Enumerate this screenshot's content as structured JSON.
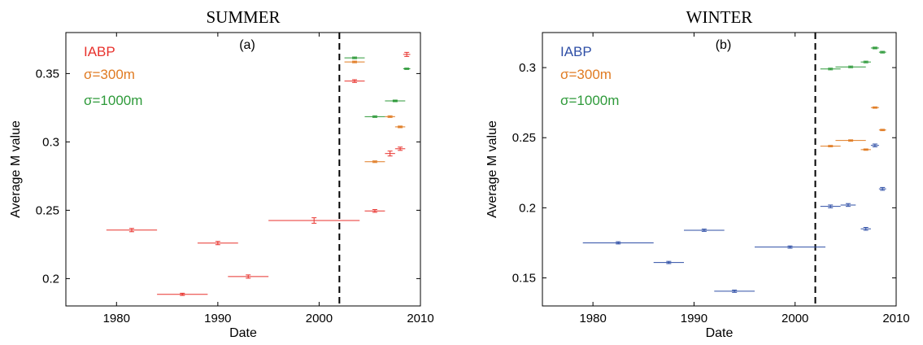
{
  "chart_data": [
    {
      "type": "scatter",
      "title": "SUMMER",
      "panel_label": "(a)",
      "xlabel": "Date",
      "ylabel": "Average M value",
      "xlim": [
        1975,
        2010
      ],
      "ylim": [
        0.18,
        0.38
      ],
      "xticks": [
        1980,
        1990,
        2000,
        2010
      ],
      "yticks": [
        0.2,
        0.25,
        0.3,
        0.35
      ],
      "ytick_labels": [
        "0.2",
        "0.25",
        "0.3",
        "0.35"
      ],
      "vline_x": 2002,
      "grid": false,
      "legend": [
        {
          "label": "IABP",
          "color": "#e8322d"
        },
        {
          "label": "σ=300m",
          "color": "#e07b22"
        },
        {
          "label": "σ=1000m",
          "color": "#2e9a3a"
        }
      ],
      "series": [
        {
          "color": "#e8322d",
          "points": [
            {
              "x0": 1979,
              "x1": 1984,
              "y": 0.2355,
              "err": 0.0012
            },
            {
              "x0": 1984,
              "x1": 1989,
              "y": 0.1885,
              "err": 0.0008
            },
            {
              "x0": 1988,
              "x1": 1992,
              "y": 0.226,
              "err": 0.0012
            },
            {
              "x0": 1991,
              "x1": 1995,
              "y": 0.2015,
              "err": 0.0012
            },
            {
              "x0": 1995,
              "x1": 2004,
              "y": 0.2425,
              "err": 0.002
            },
            {
              "x0": 2002.5,
              "x1": 2004.5,
              "y": 0.3445,
              "err": 0.001
            },
            {
              "x0": 2004.5,
              "x1": 2006.5,
              "y": 0.2495,
              "err": 0.001
            },
            {
              "x0": 2006.5,
              "x1": 2007.5,
              "y": 0.2915,
              "err": 0.0018
            },
            {
              "x0": 2007.5,
              "x1": 2008.5,
              "y": 0.295,
              "err": 0.0012
            },
            {
              "x0": 2008.3,
              "x1": 2009,
              "y": 0.364,
              "err": 0.0015
            }
          ]
        },
        {
          "color": "#e07b22",
          "points": [
            {
              "x0": 2002.5,
              "x1": 2004.5,
              "y": 0.3585,
              "err": 0.0006
            },
            {
              "x0": 2004.5,
              "x1": 2006.5,
              "y": 0.2855,
              "err": 0.0006
            },
            {
              "x0": 2006.5,
              "x1": 2007.5,
              "y": 0.3185,
              "err": 0.0006
            },
            {
              "x0": 2007.5,
              "x1": 2008.5,
              "y": 0.311,
              "err": 0.0006
            }
          ]
        },
        {
          "color": "#2e9a3a",
          "points": [
            {
              "x0": 2002.5,
              "x1": 2004.5,
              "y": 0.3615,
              "err": 0.0006
            },
            {
              "x0": 2004.5,
              "x1": 2006.5,
              "y": 0.3185,
              "err": 0.0006
            },
            {
              "x0": 2006.5,
              "x1": 2008.5,
              "y": 0.33,
              "err": 0.0006
            },
            {
              "x0": 2008.3,
              "x1": 2009,
              "y": 0.3535,
              "err": 0.0005
            }
          ]
        }
      ]
    },
    {
      "type": "scatter",
      "title": "WINTER",
      "panel_label": "(b)",
      "xlabel": "Date",
      "ylabel": "Average M value",
      "xlim": [
        1975,
        2010
      ],
      "ylim": [
        0.13,
        0.325
      ],
      "xticks": [
        1980,
        1990,
        2000,
        2010
      ],
      "yticks": [
        0.15,
        0.2,
        0.25,
        0.3
      ],
      "ytick_labels": [
        "0.15",
        "0.2",
        "0.25",
        "0.3"
      ],
      "vline_x": 2002,
      "grid": false,
      "legend": [
        {
          "label": "IABP",
          "color": "#2f4fa6"
        },
        {
          "label": "σ=300m",
          "color": "#e07b22"
        },
        {
          "label": "σ=1000m",
          "color": "#2e9a3a"
        }
      ],
      "series": [
        {
          "color": "#2f4fa6",
          "points": [
            {
              "x0": 1979,
              "x1": 1986,
              "y": 0.175,
              "err": 0.0008
            },
            {
              "x0": 1986,
              "x1": 1989,
              "y": 0.161,
              "err": 0.0008
            },
            {
              "x0": 1989,
              "x1": 1993,
              "y": 0.184,
              "err": 0.0008
            },
            {
              "x0": 1992,
              "x1": 1996,
              "y": 0.1405,
              "err": 0.0008
            },
            {
              "x0": 1996,
              "x1": 2003,
              "y": 0.172,
              "err": 0.0008
            },
            {
              "x0": 2002.5,
              "x1": 2004.5,
              "y": 0.201,
              "err": 0.001
            },
            {
              "x0": 2004.5,
              "x1": 2006,
              "y": 0.202,
              "err": 0.001
            },
            {
              "x0": 2006.5,
              "x1": 2007.5,
              "y": 0.185,
              "err": 0.001
            },
            {
              "x0": 2007.5,
              "x1": 2008.3,
              "y": 0.2445,
              "err": 0.001
            },
            {
              "x0": 2008.3,
              "x1": 2009,
              "y": 0.2135,
              "err": 0.001
            }
          ]
        },
        {
          "color": "#e07b22",
          "points": [
            {
              "x0": 2002.5,
              "x1": 2004.5,
              "y": 0.244,
              "err": 0.0005
            },
            {
              "x0": 2004,
              "x1": 2007,
              "y": 0.248,
              "err": 0.0005
            },
            {
              "x0": 2006.5,
              "x1": 2007.5,
              "y": 0.2415,
              "err": 0.0005
            },
            {
              "x0": 2007.5,
              "x1": 2008.3,
              "y": 0.2715,
              "err": 0.0005
            },
            {
              "x0": 2008.3,
              "x1": 2009,
              "y": 0.2555,
              "err": 0.0005
            }
          ]
        },
        {
          "color": "#2e9a3a",
          "points": [
            {
              "x0": 2002.5,
              "x1": 2004.5,
              "y": 0.299,
              "err": 0.0006
            },
            {
              "x0": 2004,
              "x1": 2007,
              "y": 0.3005,
              "err": 0.0006
            },
            {
              "x0": 2006.5,
              "x1": 2007.5,
              "y": 0.304,
              "err": 0.0006
            },
            {
              "x0": 2007.5,
              "x1": 2008.3,
              "y": 0.314,
              "err": 0.0006
            },
            {
              "x0": 2008.3,
              "x1": 2009,
              "y": 0.311,
              "err": 0.0006
            }
          ]
        }
      ]
    }
  ]
}
